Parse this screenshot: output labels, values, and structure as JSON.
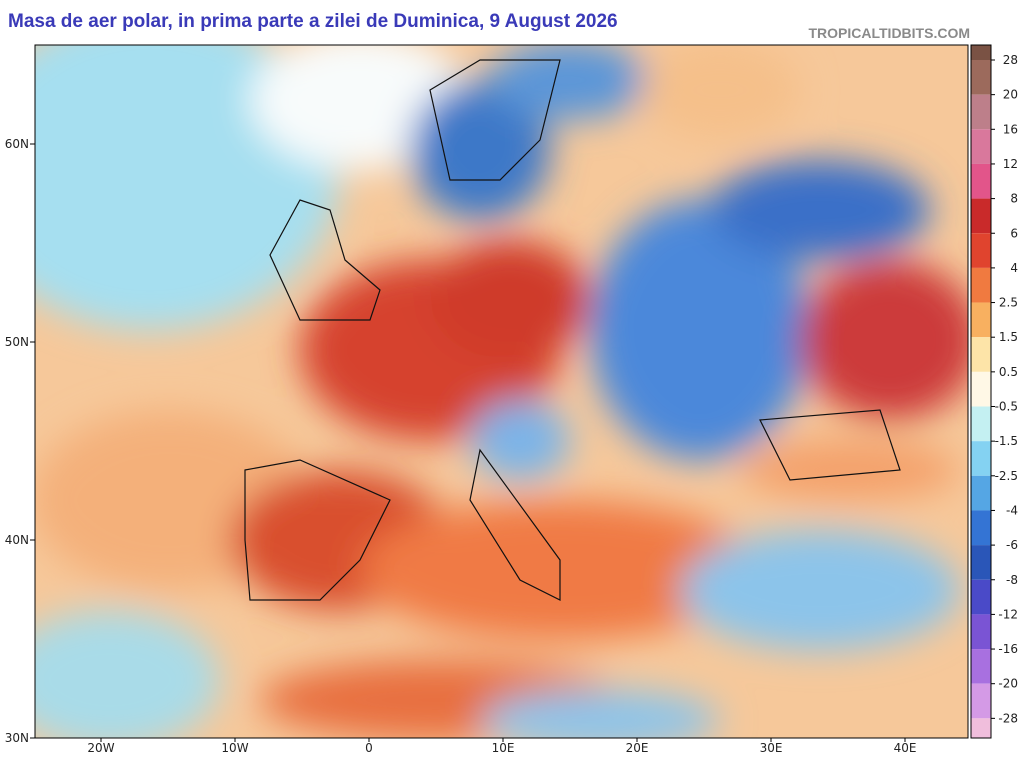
{
  "header": {
    "title": "Masa de aer polar, in prima parte a zilei de Duminica, 9 August 2026",
    "watermark": "TROPICALTIDBITS.COM"
  },
  "axes": {
    "latitude_labels": [
      "60N",
      "50N",
      "40N",
      "30N"
    ],
    "longitude_labels": [
      "20W",
      "10W",
      "0",
      "10E",
      "20E",
      "30E",
      "40E"
    ]
  },
  "colorbar": {
    "labels": [
      "28",
      "20",
      "16",
      "12",
      "8",
      "6",
      "4",
      "2.5",
      "1.5",
      "0.5",
      "-0.5",
      "-1.5",
      "-2.5",
      "-4",
      "-6",
      "-8",
      "-12",
      "-16",
      "-20",
      "-28"
    ]
  }
}
